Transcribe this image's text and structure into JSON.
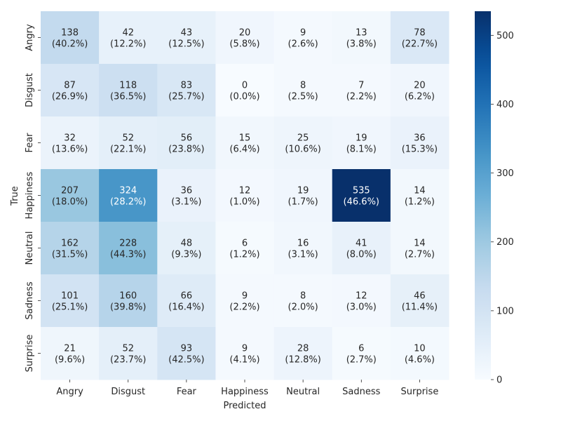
{
  "chart_data": {
    "type": "heatmap",
    "title": "",
    "xlabel": "Predicted",
    "ylabel": "True",
    "x_categories": [
      "Angry",
      "Disgust",
      "Fear",
      "Happiness",
      "Neutral",
      "Sadness",
      "Surprise"
    ],
    "y_categories": [
      "Angry",
      "Disgust",
      "Fear",
      "Happiness",
      "Neutral",
      "Sadness",
      "Surprise"
    ],
    "values": [
      [
        138,
        42,
        43,
        20,
        9,
        13,
        78
      ],
      [
        87,
        118,
        83,
        0,
        8,
        7,
        20
      ],
      [
        32,
        52,
        56,
        15,
        25,
        19,
        36
      ],
      [
        207,
        324,
        36,
        12,
        19,
        535,
        14
      ],
      [
        162,
        228,
        48,
        6,
        16,
        41,
        14
      ],
      [
        101,
        160,
        66,
        9,
        8,
        12,
        46
      ],
      [
        21,
        52,
        93,
        9,
        28,
        6,
        10
      ]
    ],
    "percentages": [
      [
        "40.2%",
        "12.2%",
        "12.5%",
        "5.8%",
        "2.6%",
        "3.8%",
        "22.7%"
      ],
      [
        "26.9%",
        "36.5%",
        "25.7%",
        "0.0%",
        "2.5%",
        "2.2%",
        "6.2%"
      ],
      [
        "13.6%",
        "22.1%",
        "23.8%",
        "6.4%",
        "10.6%",
        "8.1%",
        "15.3%"
      ],
      [
        "18.0%",
        "28.2%",
        "3.1%",
        "1.0%",
        "1.7%",
        "46.6%",
        "1.2%"
      ],
      [
        "31.5%",
        "44.3%",
        "9.3%",
        "1.2%",
        "3.1%",
        "8.0%",
        "2.7%"
      ],
      [
        "25.1%",
        "39.8%",
        "16.4%",
        "2.2%",
        "2.0%",
        "3.0%",
        "11.4%"
      ],
      [
        "9.6%",
        "23.7%",
        "42.5%",
        "4.1%",
        "12.8%",
        "2.7%",
        "4.6%"
      ]
    ],
    "colorbar": {
      "min": 0,
      "max": 535,
      "ticks": [
        0,
        100,
        200,
        300,
        400,
        500
      ]
    },
    "colormap": "Blues",
    "colors": {
      "low": "#f7fbff",
      "high": "#08306b",
      "text_dark": "#262626",
      "text_light": "#ffffff"
    }
  }
}
